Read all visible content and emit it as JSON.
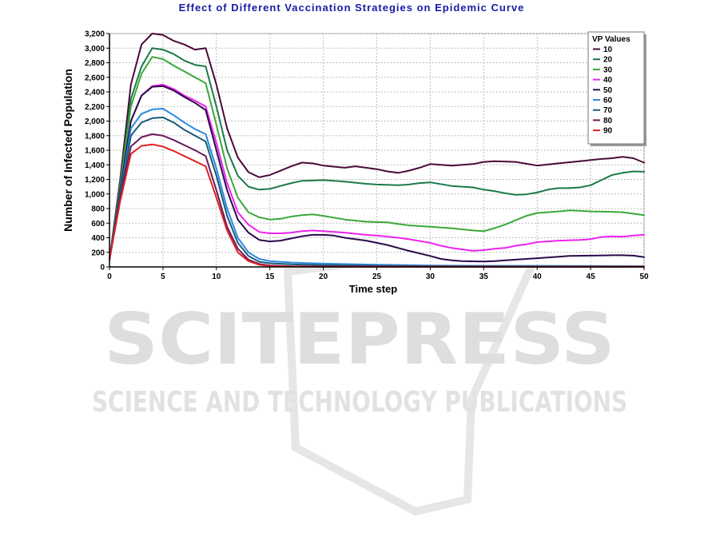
{
  "chart_data": {
    "type": "line",
    "title": "Effect of Different Vaccination Strategies on Epidemic Curve",
    "xlabel": "Time step",
    "ylabel": "Number of Infected Population",
    "xlim": [
      0,
      50
    ],
    "ylim": [
      0,
      3200
    ],
    "xticks": [
      0,
      5,
      10,
      15,
      20,
      25,
      30,
      35,
      40,
      45,
      50
    ],
    "xtick_labels": [
      "0",
      "5",
      "10",
      "15",
      "20",
      "25",
      "30",
      "35",
      "40",
      "45",
      "50"
    ],
    "yticks": [
      0,
      200,
      400,
      600,
      800,
      1000,
      1200,
      1400,
      1600,
      1800,
      2000,
      2200,
      2400,
      2600,
      2800,
      3000,
      3200
    ],
    "ytick_labels": [
      "0",
      "200",
      "400",
      "600",
      "800",
      "1,000",
      "1,200",
      "1,400",
      "1,600",
      "1,800",
      "2,000",
      "2,200",
      "2,400",
      "2,600",
      "2,800",
      "3,000",
      "3,200"
    ],
    "grid": true,
    "legend": {
      "title": "VP Values",
      "placement": "top-right"
    },
    "series": [
      {
        "name": "10",
        "color": "#4a0a3a",
        "points": [
          [
            0,
            100
          ],
          [
            1,
            1200
          ],
          [
            2,
            2500
          ],
          [
            3,
            3050
          ],
          [
            4,
            3200
          ],
          [
            5,
            3180
          ],
          [
            6,
            3100
          ],
          [
            7,
            3050
          ],
          [
            8,
            2980
          ],
          [
            9,
            3000
          ],
          [
            10,
            2500
          ],
          [
            11,
            1900
          ],
          [
            12,
            1500
          ],
          [
            13,
            1300
          ],
          [
            14,
            1230
          ],
          [
            15,
            1260
          ],
          [
            16,
            1320
          ],
          [
            17,
            1380
          ],
          [
            18,
            1430
          ],
          [
            19,
            1420
          ],
          [
            20,
            1390
          ],
          [
            22,
            1360
          ],
          [
            23,
            1380
          ],
          [
            24,
            1360
          ],
          [
            25,
            1340
          ],
          [
            26,
            1310
          ],
          [
            27,
            1290
          ],
          [
            28,
            1320
          ],
          [
            29,
            1360
          ],
          [
            30,
            1410
          ],
          [
            32,
            1390
          ],
          [
            34,
            1410
          ],
          [
            35,
            1440
          ],
          [
            36,
            1450
          ],
          [
            38,
            1440
          ],
          [
            40,
            1390
          ],
          [
            42,
            1420
          ],
          [
            44,
            1450
          ],
          [
            46,
            1480
          ],
          [
            47,
            1490
          ],
          [
            48,
            1510
          ],
          [
            49,
            1490
          ],
          [
            50,
            1430
          ]
        ]
      },
      {
        "name": "20",
        "color": "#1a7a4a",
        "points": [
          [
            0,
            100
          ],
          [
            1,
            1150
          ],
          [
            2,
            2300
          ],
          [
            3,
            2750
          ],
          [
            4,
            3000
          ],
          [
            5,
            2980
          ],
          [
            6,
            2920
          ],
          [
            7,
            2830
          ],
          [
            8,
            2770
          ],
          [
            9,
            2750
          ],
          [
            10,
            2200
          ],
          [
            11,
            1600
          ],
          [
            12,
            1250
          ],
          [
            13,
            1100
          ],
          [
            14,
            1060
          ],
          [
            15,
            1070
          ],
          [
            16,
            1110
          ],
          [
            17,
            1150
          ],
          [
            18,
            1180
          ],
          [
            20,
            1190
          ],
          [
            22,
            1170
          ],
          [
            24,
            1140
          ],
          [
            25,
            1130
          ],
          [
            27,
            1120
          ],
          [
            28,
            1130
          ],
          [
            29,
            1150
          ],
          [
            30,
            1160
          ],
          [
            32,
            1110
          ],
          [
            34,
            1090
          ],
          [
            35,
            1060
          ],
          [
            36,
            1040
          ],
          [
            37,
            1010
          ],
          [
            38,
            990
          ],
          [
            39,
            995
          ],
          [
            40,
            1020
          ],
          [
            41,
            1060
          ],
          [
            42,
            1080
          ],
          [
            43,
            1080
          ],
          [
            44,
            1090
          ],
          [
            45,
            1120
          ],
          [
            46,
            1190
          ],
          [
            47,
            1260
          ],
          [
            48,
            1290
          ],
          [
            49,
            1310
          ],
          [
            50,
            1305
          ]
        ]
      },
      {
        "name": "30",
        "color": "#3aa83a",
        "points": [
          [
            0,
            100
          ],
          [
            1,
            1100
          ],
          [
            2,
            2200
          ],
          [
            3,
            2650
          ],
          [
            4,
            2880
          ],
          [
            5,
            2850
          ],
          [
            6,
            2760
          ],
          [
            7,
            2680
          ],
          [
            8,
            2600
          ],
          [
            9,
            2520
          ],
          [
            10,
            1950
          ],
          [
            11,
            1350
          ],
          [
            12,
            950
          ],
          [
            13,
            750
          ],
          [
            14,
            680
          ],
          [
            15,
            650
          ],
          [
            16,
            660
          ],
          [
            17,
            690
          ],
          [
            18,
            710
          ],
          [
            19,
            720
          ],
          [
            20,
            700
          ],
          [
            22,
            650
          ],
          [
            24,
            620
          ],
          [
            25,
            615
          ],
          [
            26,
            610
          ],
          [
            27,
            590
          ],
          [
            28,
            570
          ],
          [
            30,
            550
          ],
          [
            32,
            530
          ],
          [
            34,
            500
          ],
          [
            35,
            490
          ],
          [
            36,
            530
          ],
          [
            37,
            580
          ],
          [
            38,
            640
          ],
          [
            39,
            700
          ],
          [
            40,
            740
          ],
          [
            42,
            760
          ],
          [
            43,
            775
          ],
          [
            44,
            770
          ],
          [
            45,
            760
          ],
          [
            47,
            755
          ],
          [
            48,
            750
          ],
          [
            49,
            730
          ],
          [
            50,
            710
          ]
        ]
      },
      {
        "name": "40",
        "color": "#ee22ee",
        "points": [
          [
            0,
            100
          ],
          [
            1,
            1050
          ],
          [
            2,
            2000
          ],
          [
            3,
            2350
          ],
          [
            4,
            2480
          ],
          [
            5,
            2500
          ],
          [
            6,
            2440
          ],
          [
            7,
            2350
          ],
          [
            8,
            2280
          ],
          [
            9,
            2200
          ],
          [
            10,
            1700
          ],
          [
            11,
            1150
          ],
          [
            12,
            750
          ],
          [
            13,
            580
          ],
          [
            14,
            480
          ],
          [
            15,
            460
          ],
          [
            16,
            460
          ],
          [
            17,
            470
          ],
          [
            18,
            490
          ],
          [
            19,
            500
          ],
          [
            20,
            490
          ],
          [
            22,
            470
          ],
          [
            24,
            440
          ],
          [
            25,
            430
          ],
          [
            27,
            400
          ],
          [
            28,
            380
          ],
          [
            30,
            330
          ],
          [
            31,
            290
          ],
          [
            32,
            260
          ],
          [
            33,
            240
          ],
          [
            34,
            220
          ],
          [
            35,
            230
          ],
          [
            36,
            250
          ],
          [
            37,
            260
          ],
          [
            38,
            290
          ],
          [
            39,
            310
          ],
          [
            40,
            340
          ],
          [
            42,
            360
          ],
          [
            44,
            370
          ],
          [
            45,
            380
          ],
          [
            46,
            410
          ],
          [
            47,
            420
          ],
          [
            48,
            415
          ],
          [
            49,
            430
          ],
          [
            50,
            440
          ]
        ]
      },
      {
        "name": "50",
        "color": "#2a0a4a",
        "points": [
          [
            0,
            100
          ],
          [
            1,
            1050
          ],
          [
            2,
            2000
          ],
          [
            3,
            2350
          ],
          [
            4,
            2470
          ],
          [
            5,
            2480
          ],
          [
            6,
            2420
          ],
          [
            7,
            2330
          ],
          [
            8,
            2250
          ],
          [
            9,
            2150
          ],
          [
            10,
            1600
          ],
          [
            11,
            1050
          ],
          [
            12,
            650
          ],
          [
            13,
            470
          ],
          [
            14,
            370
          ],
          [
            15,
            350
          ],
          [
            16,
            360
          ],
          [
            17,
            390
          ],
          [
            18,
            420
          ],
          [
            19,
            440
          ],
          [
            20,
            440
          ],
          [
            21,
            430
          ],
          [
            22,
            400
          ],
          [
            24,
            360
          ],
          [
            25,
            330
          ],
          [
            26,
            300
          ],
          [
            27,
            260
          ],
          [
            28,
            220
          ],
          [
            30,
            150
          ],
          [
            31,
            110
          ],
          [
            32,
            90
          ],
          [
            33,
            80
          ],
          [
            35,
            75
          ],
          [
            36,
            80
          ],
          [
            37,
            90
          ],
          [
            38,
            100
          ],
          [
            39,
            110
          ],
          [
            40,
            120
          ],
          [
            42,
            140
          ],
          [
            43,
            150
          ],
          [
            45,
            155
          ],
          [
            47,
            160
          ],
          [
            48,
            160
          ],
          [
            49,
            155
          ],
          [
            50,
            135
          ]
        ]
      },
      {
        "name": "60",
        "color": "#2a8ae0",
        "points": [
          [
            0,
            100
          ],
          [
            1,
            1000
          ],
          [
            2,
            1900
          ],
          [
            3,
            2100
          ],
          [
            4,
            2160
          ],
          [
            5,
            2170
          ],
          [
            6,
            2080
          ],
          [
            7,
            1980
          ],
          [
            8,
            1890
          ],
          [
            9,
            1820
          ],
          [
            10,
            1350
          ],
          [
            11,
            800
          ],
          [
            12,
            400
          ],
          [
            13,
            200
          ],
          [
            14,
            110
          ],
          [
            15,
            80
          ],
          [
            17,
            60
          ],
          [
            20,
            45
          ],
          [
            25,
            30
          ],
          [
            30,
            20
          ],
          [
            35,
            15
          ],
          [
            40,
            15
          ],
          [
            45,
            12
          ],
          [
            50,
            10
          ]
        ]
      },
      {
        "name": "70",
        "color": "#1a5a7a",
        "points": [
          [
            0,
            100
          ],
          [
            1,
            980
          ],
          [
            2,
            1800
          ],
          [
            3,
            1980
          ],
          [
            4,
            2040
          ],
          [
            5,
            2050
          ],
          [
            6,
            1980
          ],
          [
            7,
            1880
          ],
          [
            8,
            1800
          ],
          [
            9,
            1720
          ],
          [
            10,
            1250
          ],
          [
            11,
            700
          ],
          [
            12,
            330
          ],
          [
            13,
            150
          ],
          [
            14,
            70
          ],
          [
            15,
            50
          ],
          [
            17,
            35
          ],
          [
            20,
            25
          ],
          [
            25,
            15
          ],
          [
            30,
            10
          ],
          [
            35,
            8
          ],
          [
            40,
            6
          ],
          [
            45,
            5
          ],
          [
            50,
            5
          ]
        ]
      },
      {
        "name": "80",
        "color": "#6a1a5a",
        "points": [
          [
            0,
            100
          ],
          [
            1,
            950
          ],
          [
            2,
            1650
          ],
          [
            3,
            1780
          ],
          [
            4,
            1820
          ],
          [
            5,
            1800
          ],
          [
            6,
            1740
          ],
          [
            7,
            1670
          ],
          [
            8,
            1600
          ],
          [
            9,
            1520
          ],
          [
            10,
            1050
          ],
          [
            11,
            550
          ],
          [
            12,
            250
          ],
          [
            13,
            100
          ],
          [
            14,
            40
          ],
          [
            15,
            20
          ],
          [
            17,
            10
          ],
          [
            20,
            5
          ],
          [
            30,
            3
          ],
          [
            40,
            2
          ],
          [
            50,
            2
          ]
        ]
      },
      {
        "name": "90",
        "color": "#dd2222",
        "points": [
          [
            0,
            100
          ],
          [
            1,
            900
          ],
          [
            2,
            1550
          ],
          [
            3,
            1660
          ],
          [
            4,
            1680
          ],
          [
            5,
            1650
          ],
          [
            6,
            1590
          ],
          [
            7,
            1520
          ],
          [
            8,
            1450
          ],
          [
            9,
            1380
          ],
          [
            10,
            950
          ],
          [
            11,
            500
          ],
          [
            12,
            200
          ],
          [
            13,
            80
          ],
          [
            14,
            30
          ],
          [
            15,
            12
          ],
          [
            17,
            5
          ],
          [
            20,
            3
          ],
          [
            30,
            2
          ],
          [
            40,
            1
          ],
          [
            50,
            1
          ]
        ]
      }
    ]
  },
  "watermark": {
    "word": "SCITEPRESS",
    "subtitle": "SCIENCE AND TECHNOLOGY PUBLICATIONS",
    "color": "#e0e0e0"
  }
}
